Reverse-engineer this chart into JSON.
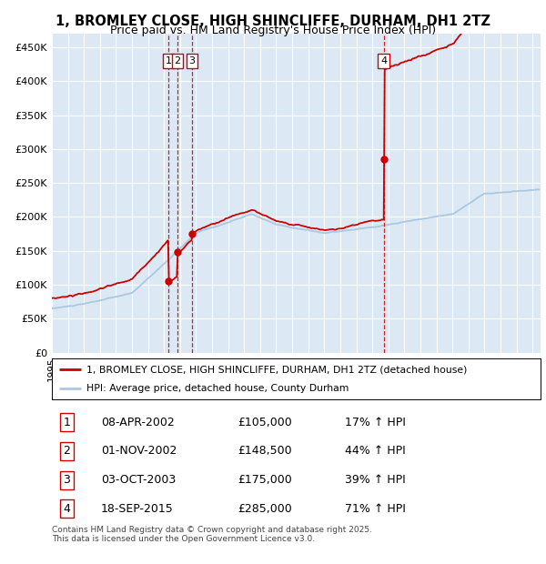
{
  "title": "1, BROMLEY CLOSE, HIGH SHINCLIFFE, DURHAM, DH1 2TZ",
  "subtitle": "Price paid vs. HM Land Registry's House Price Index (HPI)",
  "ylabel_ticks": [
    "£0",
    "£50K",
    "£100K",
    "£150K",
    "£200K",
    "£250K",
    "£300K",
    "£350K",
    "£400K",
    "£450K"
  ],
  "ytick_vals": [
    0,
    50000,
    100000,
    150000,
    200000,
    250000,
    300000,
    350000,
    400000,
    450000
  ],
  "ylim": [
    0,
    470000
  ],
  "xlim_start": 1995.0,
  "xlim_end": 2025.5,
  "bg_color": "#dce9f5",
  "grid_color": "#ffffff",
  "red_color": "#cc0000",
  "blue_color": "#aac8e0",
  "legend_label_red": "1, BROMLEY CLOSE, HIGH SHINCLIFFE, DURHAM, DH1 2TZ (detached house)",
  "legend_label_blue": "HPI: Average price, detached house, County Durham",
  "sale_points": [
    {
      "label": "1",
      "date_num": 2002.27,
      "price": 105000
    },
    {
      "label": "2",
      "date_num": 2002.83,
      "price": 148500
    },
    {
      "label": "3",
      "date_num": 2003.75,
      "price": 175000
    },
    {
      "label": "4",
      "date_num": 2015.72,
      "price": 285000
    }
  ],
  "table_rows": [
    {
      "num": "1",
      "date": "08-APR-2002",
      "price": "£105,000",
      "hpi": "17% ↑ HPI"
    },
    {
      "num": "2",
      "date": "01-NOV-2002",
      "price": "£148,500",
      "hpi": "44% ↑ HPI"
    },
    {
      "num": "3",
      "date": "03-OCT-2003",
      "price": "£175,000",
      "hpi": "39% ↑ HPI"
    },
    {
      "num": "4",
      "date": "18-SEP-2015",
      "price": "£285,000",
      "hpi": "71% ↑ HPI"
    }
  ],
  "footer": "Contains HM Land Registry data © Crown copyright and database right 2025.\nThis data is licensed under the Open Government Licence v3.0."
}
